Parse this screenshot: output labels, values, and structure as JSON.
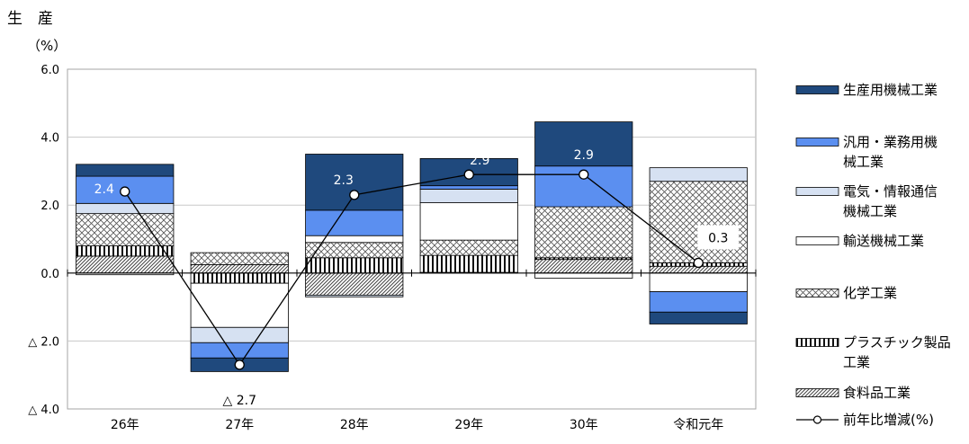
{
  "chart_data": {
    "type": "bar",
    "title": "生　産",
    "ylabel": "（%）",
    "ylim": [
      -4,
      6
    ],
    "y_ticks": [
      {
        "value": 6,
        "label": "6.0"
      },
      {
        "value": 4,
        "label": "4.0"
      },
      {
        "value": 2,
        "label": "2.0"
      },
      {
        "value": 0,
        "label": "0.0"
      },
      {
        "value": -2,
        "label": "△ 2.0"
      },
      {
        "value": -4,
        "label": "△ 4.0"
      }
    ],
    "grid": true,
    "legend_position": "right",
    "categories": [
      "26年",
      "27年",
      "28年",
      "29年",
      "30年",
      "令和元年"
    ],
    "stack_order": [
      "food",
      "plastic",
      "chemical",
      "transport",
      "electric",
      "general",
      "production"
    ],
    "series": [
      {
        "key": "production",
        "name": "生産用機械工業",
        "pattern": "solid-dark",
        "values": [
          0.35,
          -0.4,
          1.65,
          0.8,
          1.3,
          -0.35
        ]
      },
      {
        "key": "general",
        "name": "汎用・業務用機械工業",
        "pattern": "solid-blue",
        "values": [
          0.8,
          -0.45,
          0.75,
          0.1,
          1.2,
          -0.6
        ]
      },
      {
        "key": "electric",
        "name": "電気・情報通信機械工業",
        "pattern": "solid-light",
        "values": [
          0.3,
          -0.45,
          -0.05,
          0.4,
          0.0,
          0.4
        ]
      },
      {
        "key": "transport",
        "name": "輸送機械工業",
        "pattern": "solid-white",
        "values": [
          -0.05,
          -1.3,
          0.2,
          1.1,
          -0.15,
          -0.55
        ]
      },
      {
        "key": "chemical",
        "name": "化学工業",
        "pattern": "crosshatch",
        "values": [
          0.95,
          0.35,
          0.45,
          0.45,
          1.5,
          2.4
        ]
      },
      {
        "key": "plastic",
        "name": "プラスチック製品工業",
        "pattern": "vertical",
        "values": [
          0.3,
          -0.3,
          0.45,
          0.5,
          0.05,
          0.1
        ]
      },
      {
        "key": "food",
        "name": "食料品工業",
        "pattern": "diagonal",
        "values": [
          0.5,
          0.25,
          -0.65,
          0.02,
          0.4,
          0.2
        ]
      }
    ],
    "line": {
      "name": "前年比増減(%)",
      "values": [
        2.4,
        -2.7,
        2.3,
        2.9,
        2.9,
        0.3
      ],
      "labels": [
        "2.4",
        "△ 2.7",
        "2.3",
        "2.9",
        "2.9",
        "0.3"
      ]
    }
  }
}
